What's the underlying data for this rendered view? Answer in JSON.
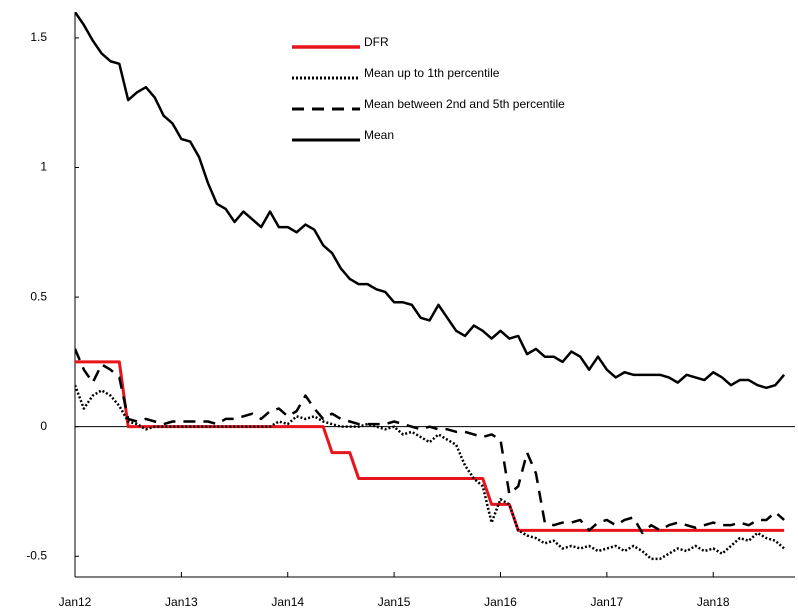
{
  "chart_data": {
    "type": "line",
    "x": [
      "2012-01",
      "2012-02",
      "2012-03",
      "2012-04",
      "2012-05",
      "2012-06",
      "2012-07",
      "2012-08",
      "2012-09",
      "2012-10",
      "2012-11",
      "2012-12",
      "2013-01",
      "2013-02",
      "2013-03",
      "2013-04",
      "2013-05",
      "2013-06",
      "2013-07",
      "2013-08",
      "2013-09",
      "2013-10",
      "2013-11",
      "2013-12",
      "2014-01",
      "2014-02",
      "2014-03",
      "2014-04",
      "2014-05",
      "2014-06",
      "2014-07",
      "2014-08",
      "2014-09",
      "2014-10",
      "2014-11",
      "2014-12",
      "2015-01",
      "2015-02",
      "2015-03",
      "2015-04",
      "2015-05",
      "2015-06",
      "2015-07",
      "2015-08",
      "2015-09",
      "2015-10",
      "2015-11",
      "2015-12",
      "2016-01",
      "2016-02",
      "2016-03",
      "2016-04",
      "2016-05",
      "2016-06",
      "2016-07",
      "2016-08",
      "2016-09",
      "2016-10",
      "2016-11",
      "2016-12",
      "2017-01",
      "2017-02",
      "2017-03",
      "2017-04",
      "2017-05",
      "2017-06",
      "2017-07",
      "2017-08",
      "2017-09",
      "2017-10",
      "2017-11",
      "2017-12",
      "2018-01",
      "2018-02",
      "2018-03",
      "2018-04",
      "2018-05",
      "2018-06",
      "2018-07",
      "2018-08",
      "2018-09"
    ],
    "series": [
      {
        "name": "DFR",
        "color": "#e8141c",
        "dash": "solid",
        "width": 3,
        "values": [
          0.25,
          0.25,
          0.25,
          0.25,
          0.25,
          0.25,
          0,
          0,
          0,
          0,
          0,
          0,
          0,
          0,
          0,
          0,
          0,
          0,
          0,
          0,
          0,
          0,
          0,
          0,
          0,
          0,
          0,
          0,
          0,
          -0.1,
          -0.1,
          -0.1,
          -0.2,
          -0.2,
          -0.2,
          -0.2,
          -0.2,
          -0.2,
          -0.2,
          -0.2,
          -0.2,
          -0.2,
          -0.2,
          -0.2,
          -0.2,
          -0.2,
          -0.2,
          -0.3,
          -0.3,
          -0.3,
          -0.4,
          -0.4,
          -0.4,
          -0.4,
          -0.4,
          -0.4,
          -0.4,
          -0.4,
          -0.4,
          -0.4,
          -0.4,
          -0.4,
          -0.4,
          -0.4,
          -0.4,
          -0.4,
          -0.4,
          -0.4,
          -0.4,
          -0.4,
          -0.4,
          -0.4,
          -0.4,
          -0.4,
          -0.4,
          -0.4,
          -0.4,
          -0.4,
          -0.4,
          -0.4,
          -0.4
        ]
      },
      {
        "name": "Mean up to 1th percentile",
        "color": "#000000",
        "dash": "dotted",
        "width": 2.5,
        "values": [
          0.16,
          0.07,
          0.12,
          0.14,
          0.12,
          0.08,
          0.02,
          0.01,
          -0.01,
          0,
          0,
          0,
          0,
          0,
          0,
          0,
          0,
          0,
          0,
          0,
          0,
          0,
          0,
          0.02,
          0.01,
          0.04,
          0.03,
          0.04,
          0.02,
          0.01,
          0,
          0,
          0,
          0.01,
          0,
          -0.01,
          0,
          -0.03,
          -0.02,
          -0.04,
          -0.06,
          -0.03,
          -0.05,
          -0.07,
          -0.15,
          -0.2,
          -0.23,
          -0.37,
          -0.28,
          -0.3,
          -0.4,
          -0.42,
          -0.43,
          -0.45,
          -0.44,
          -0.47,
          -0.46,
          -0.47,
          -0.46,
          -0.48,
          -0.47,
          -0.46,
          -0.48,
          -0.46,
          -0.48,
          -0.51,
          -0.51,
          -0.49,
          -0.47,
          -0.48,
          -0.46,
          -0.48,
          -0.47,
          -0.49,
          -0.46,
          -0.43,
          -0.44,
          -0.41,
          -0.43,
          -0.44,
          -0.47
        ]
      },
      {
        "name": "Mean between 2nd and 5th percentile",
        "color": "#000000",
        "dash": "dashed",
        "width": 2.5,
        "values": [
          0.3,
          0.22,
          0.17,
          0.24,
          0.22,
          0.19,
          0.03,
          0.02,
          0.03,
          0.02,
          0.01,
          0.02,
          0.02,
          0.02,
          0.02,
          0.02,
          0.01,
          0.03,
          0.03,
          0.04,
          0.05,
          0.03,
          0.06,
          0.07,
          0.04,
          0.06,
          0.12,
          0.07,
          0.03,
          0.05,
          0.03,
          0.02,
          0.01,
          0.01,
          0.01,
          0.01,
          0.02,
          0.01,
          0,
          -0.01,
          0,
          -0.01,
          -0.01,
          -0.02,
          -0.02,
          -0.03,
          -0.04,
          -0.03,
          -0.05,
          -0.26,
          -0.23,
          -0.1,
          -0.18,
          -0.37,
          -0.38,
          -0.37,
          -0.37,
          -0.36,
          -0.4,
          -0.37,
          -0.36,
          -0.38,
          -0.36,
          -0.35,
          -0.41,
          -0.38,
          -0.4,
          -0.38,
          -0.37,
          -0.38,
          -0.39,
          -0.38,
          -0.37,
          -0.38,
          -0.38,
          -0.37,
          -0.38,
          -0.36,
          -0.36,
          -0.33,
          -0.36
        ]
      },
      {
        "name": "Mean",
        "color": "#000000",
        "dash": "solid",
        "width": 2.5,
        "values": [
          1.6,
          1.55,
          1.49,
          1.44,
          1.41,
          1.4,
          1.26,
          1.29,
          1.31,
          1.27,
          1.2,
          1.17,
          1.11,
          1.1,
          1.04,
          0.94,
          0.86,
          0.84,
          0.79,
          0.83,
          0.8,
          0.77,
          0.83,
          0.77,
          0.77,
          0.75,
          0.78,
          0.76,
          0.7,
          0.67,
          0.61,
          0.57,
          0.55,
          0.55,
          0.53,
          0.52,
          0.48,
          0.48,
          0.47,
          0.42,
          0.41,
          0.47,
          0.42,
          0.37,
          0.35,
          0.39,
          0.37,
          0.34,
          0.37,
          0.34,
          0.35,
          0.28,
          0.3,
          0.27,
          0.27,
          0.25,
          0.29,
          0.27,
          0.22,
          0.27,
          0.22,
          0.19,
          0.21,
          0.2,
          0.2,
          0.2,
          0.2,
          0.19,
          0.17,
          0.2,
          0.19,
          0.18,
          0.21,
          0.19,
          0.16,
          0.18,
          0.18,
          0.16,
          0.15,
          0.16,
          0.2
        ]
      }
    ],
    "xlim": [
      "2012-01",
      "2018-10"
    ],
    "xticks": [
      {
        "value": "2012-01",
        "label": "Jan12"
      },
      {
        "value": "2013-01",
        "label": "Jan13"
      },
      {
        "value": "2014-01",
        "label": "Jan14"
      },
      {
        "value": "2015-01",
        "label": "Jan15"
      },
      {
        "value": "2016-01",
        "label": "Jan16"
      },
      {
        "value": "2017-01",
        "label": "Jan17"
      },
      {
        "value": "2018-01",
        "label": "Jan18"
      }
    ],
    "ylim": [
      -0.58,
      1.6
    ],
    "yticks": [
      -0.5,
      0,
      0.5,
      1,
      1.5
    ],
    "legend": "upper center"
  }
}
